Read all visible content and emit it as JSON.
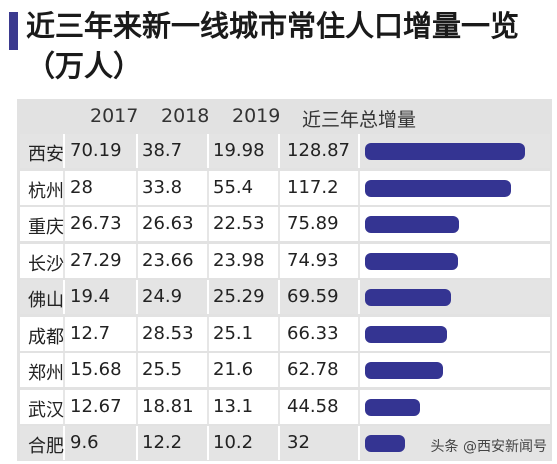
{
  "title": "近三年来新一线城市常住人口增量一览（万人）",
  "watermark": "头条 @西安新闻号",
  "chart_data": {
    "type": "table",
    "columns": [
      "",
      "2017",
      "2018",
      "2019",
      "近三年总增量"
    ],
    "rows": [
      {
        "city": "西安",
        "v2017": "70.19",
        "v2018": "38.7",
        "v2019": "19.98",
        "total": 128.87,
        "total_label": "128.87",
        "highlight": true
      },
      {
        "city": "杭州",
        "v2017": "28",
        "v2018": "33.8",
        "v2019": "55.4",
        "total": 117.2,
        "total_label": "117.2",
        "highlight": false
      },
      {
        "city": "重庆",
        "v2017": "26.73",
        "v2018": "26.63",
        "v2019": "22.53",
        "total": 75.89,
        "total_label": "75.89",
        "highlight": false
      },
      {
        "city": "长沙",
        "v2017": "27.29",
        "v2018": "23.66",
        "v2019": "23.98",
        "total": 74.93,
        "total_label": "74.93",
        "highlight": false
      },
      {
        "city": "佛山",
        "v2017": "19.4",
        "v2018": "24.9",
        "v2019": "25.29",
        "total": 69.59,
        "total_label": "69.59",
        "highlight": true
      },
      {
        "city": "成都",
        "v2017": "12.7",
        "v2018": "28.53",
        "v2019": "25.1",
        "total": 66.33,
        "total_label": "66.33",
        "highlight": false
      },
      {
        "city": "郑州",
        "v2017": "15.68",
        "v2018": "25.5",
        "v2019": "21.6",
        "total": 62.78,
        "total_label": "62.78",
        "highlight": false
      },
      {
        "city": "武汉",
        "v2017": "12.67",
        "v2018": "18.81",
        "v2019": "13.1",
        "total": 44.58,
        "total_label": "44.58",
        "highlight": false
      },
      {
        "city": "合肥",
        "v2017": "9.6",
        "v2018": "12.2",
        "v2019": "10.2",
        "total": 32,
        "total_label": "32",
        "highlight": true
      }
    ],
    "bar_color": "#343492"
  }
}
